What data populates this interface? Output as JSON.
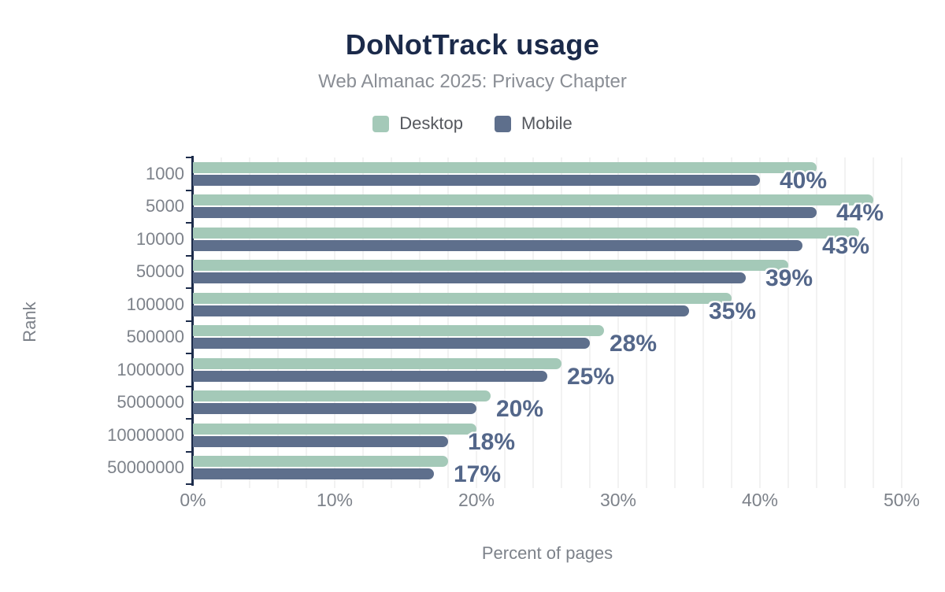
{
  "header": {
    "title": "DoNotTrack usage",
    "subtitle": "Web Almanac 2025: Privacy Chapter"
  },
  "chart_data": {
    "type": "bar",
    "orientation": "horizontal",
    "title": "DoNotTrack usage",
    "subtitle": "Web Almanac 2025: Privacy Chapter",
    "xlabel": "Percent of pages",
    "ylabel": "Rank",
    "categories": [
      "1000",
      "5000",
      "10000",
      "50000",
      "100000",
      "500000",
      "1000000",
      "5000000",
      "10000000",
      "50000000"
    ],
    "series": [
      {
        "name": "Desktop",
        "color": "#a4c9b8",
        "values": [
          44,
          48,
          47,
          42,
          38,
          29,
          26,
          21,
          20,
          18
        ]
      },
      {
        "name": "Mobile",
        "color": "#5e6f8c",
        "values": [
          40,
          44,
          43,
          39,
          35,
          28,
          25,
          20,
          18,
          17
        ]
      }
    ],
    "data_labels": [
      "40%",
      "44%",
      "43%",
      "39%",
      "35%",
      "28%",
      "25%",
      "20%",
      "18%",
      "17%"
    ],
    "data_labels_source": "Mobile",
    "x_ticks": [
      "0%",
      "10%",
      "20%",
      "30%",
      "40%",
      "50%"
    ],
    "x_tick_values": [
      0,
      10,
      20,
      30,
      40,
      50
    ],
    "xlim": [
      0,
      50
    ],
    "grid": "vertical minor gridlines every 2%",
    "legend_position": "top",
    "colors": {
      "title": "#1b2a4a",
      "subtitle": "#8a8e95",
      "axis_line": "#1c2b4a",
      "tick_text": "#7d828a",
      "gridline": "#f2f2f2",
      "value_label": "#54678a",
      "desktop": "#a4c9b8",
      "mobile": "#5e6f8c"
    }
  }
}
